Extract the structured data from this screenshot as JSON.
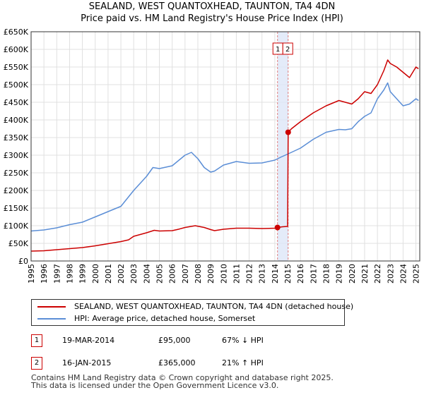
{
  "title_line1": "SEALAND, WEST QUANTOXHEAD, TAUNTON, TA4 4DN",
  "title_line2": "Price paid vs. HM Land Registry's House Price Index (HPI)",
  "colors": {
    "property": "#cc0000",
    "hpi": "#5b8ed6",
    "marker_band": "#dde6f7",
    "grid": "#e0e0e0",
    "dash": "#e08080"
  },
  "legend": {
    "property_label": "SEALAND, WEST QUANTOXHEAD, TAUNTON, TA4 4DN (detached house)",
    "hpi_label": "HPI: Average price, detached house, Somerset"
  },
  "transactions": [
    {
      "id": "1",
      "date": "19-MAR-2014",
      "price": "£95,000",
      "hpi_change": "67% ↓ HPI"
    },
    {
      "id": "2",
      "date": "16-JAN-2015",
      "price": "£365,000",
      "hpi_change": "21% ↑ HPI"
    }
  ],
  "footer": {
    "line1": "Contains HM Land Registry data © Crown copyright and database right 2025.",
    "line2": "This data is licensed under the Open Government Licence v3.0."
  },
  "chart_data": {
    "type": "line",
    "title": "SEALAND, WEST QUANTOXHEAD, TAUNTON, TA4 4DN",
    "subtitle": "Price paid vs. HM Land Registry's House Price Index (HPI)",
    "xlabel": "",
    "ylabel": "",
    "xlim": [
      1995,
      2025.3
    ],
    "ylim": [
      0,
      650000
    ],
    "grid": true,
    "x_ticks": [
      "1995",
      "1996",
      "1997",
      "1998",
      "1999",
      "2000",
      "2001",
      "2002",
      "2003",
      "2004",
      "2005",
      "2006",
      "2007",
      "2008",
      "2009",
      "2010",
      "2011",
      "2012",
      "2013",
      "2014",
      "2015",
      "2016",
      "2017",
      "2018",
      "2019",
      "2020",
      "2021",
      "2022",
      "2023",
      "2024",
      "2025"
    ],
    "y_ticks": [
      0,
      50000,
      100000,
      150000,
      200000,
      250000,
      300000,
      350000,
      400000,
      450000,
      500000,
      550000,
      600000,
      650000
    ],
    "y_tick_labels": [
      "£0",
      "£50K",
      "£100K",
      "£150K",
      "£200K",
      "£250K",
      "£300K",
      "£350K",
      "£400K",
      "£450K",
      "£500K",
      "£550K",
      "£600K",
      "£650K"
    ],
    "series": [
      {
        "name": "SEALAND, WEST QUANTOXHEAD, TAUNTON, TA4 4DN (detached house)",
        "color": "#cc0000",
        "x": [
          1995.0,
          1996.0,
          1997.0,
          1998.0,
          1999.0,
          2000.0,
          2001.0,
          2002.0,
          2002.6,
          2003.0,
          2004.0,
          2004.6,
          2005.0,
          2006.0,
          2006.5,
          2007.0,
          2007.8,
          2008.5,
          2009.0,
          2009.3,
          2010.0,
          2011.0,
          2012.0,
          2013.0,
          2014.0,
          2014.21,
          2014.6,
          2015.0,
          2015.04,
          2015.3,
          2016.0,
          2017.0,
          2018.0,
          2019.0,
          2019.5,
          2020.0,
          2020.5,
          2021.0,
          2021.5,
          2022.0,
          2022.5,
          2022.8,
          2023.0,
          2023.5,
          2024.0,
          2024.5,
          2025.0,
          2025.2
        ],
        "values": [
          28000,
          29000,
          32000,
          35000,
          38000,
          43000,
          49000,
          55000,
          60000,
          70000,
          80000,
          87000,
          85000,
          86000,
          90000,
          95000,
          100000,
          95000,
          89000,
          86000,
          90000,
          93000,
          93000,
          92000,
          93000,
          95000,
          97000,
          98000,
          365000,
          375000,
          395000,
          420000,
          440000,
          455000,
          450000,
          445000,
          460000,
          480000,
          475000,
          500000,
          540000,
          570000,
          560000,
          550000,
          535000,
          520000,
          550000,
          545000
        ]
      },
      {
        "name": "HPI: Average price, detached house, Somerset",
        "color": "#5b8ed6",
        "x": [
          1995.0,
          1996.0,
          1997.0,
          1998.0,
          1999.0,
          2000.0,
          2001.0,
          2002.0,
          2003.0,
          2004.0,
          2004.5,
          2005.0,
          2006.0,
          2007.0,
          2007.5,
          2008.0,
          2008.5,
          2009.0,
          2009.3,
          2010.0,
          2011.0,
          2012.0,
          2013.0,
          2014.0,
          2014.5,
          2015.0,
          2016.0,
          2017.0,
          2018.0,
          2019.0,
          2019.5,
          2020.0,
          2020.5,
          2021.0,
          2021.5,
          2022.0,
          2022.5,
          2022.8,
          2023.0,
          2023.5,
          2024.0,
          2024.5,
          2025.0,
          2025.2
        ],
        "values": [
          85000,
          88000,
          94000,
          103000,
          110000,
          125000,
          140000,
          155000,
          200000,
          240000,
          265000,
          262000,
          270000,
          300000,
          308000,
          290000,
          265000,
          252000,
          255000,
          272000,
          282000,
          277000,
          278000,
          286000,
          295000,
          303000,
          320000,
          345000,
          365000,
          373000,
          372000,
          375000,
          395000,
          410000,
          420000,
          460000,
          485000,
          505000,
          480000,
          460000,
          440000,
          445000,
          460000,
          455000
        ]
      }
    ],
    "annotations": [
      {
        "label": "1",
        "x": 2014.21,
        "value": 95000
      },
      {
        "label": "2",
        "x": 2015.04,
        "value": 365000
      }
    ]
  }
}
